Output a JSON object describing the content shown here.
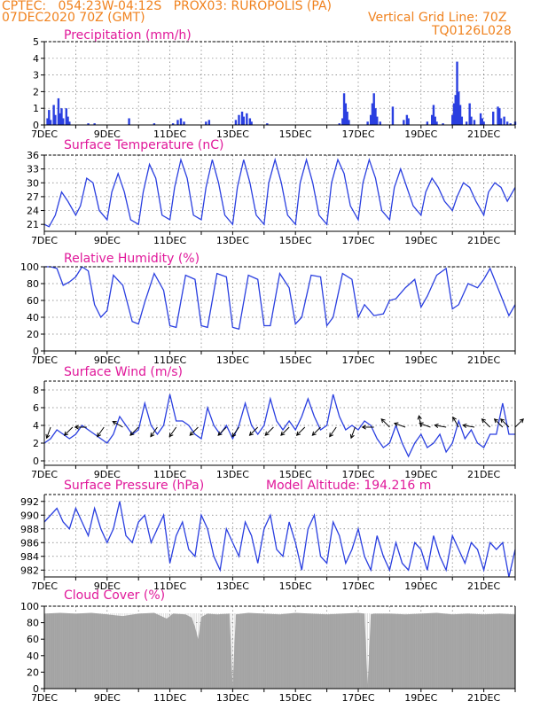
{
  "header": {
    "line1": "CPTEC:   054:23W-04:12S   PROX03: RUROPOLIS (PA)",
    "line2": "07DEC2020 70Z (GMT)",
    "grid_line": "Vertical Grid Line: 70Z",
    "code": "TQ0126L028"
  },
  "colors": {
    "header": "#f0821e",
    "titles": "#e0189a",
    "series": "#2a3fe0",
    "cloud": "#a8a8a8"
  },
  "x_axis": {
    "start": "07DEC",
    "end": "22DEC",
    "days": 15,
    "ticks": [
      {
        "day": 0,
        "label": "7DEC"
      },
      {
        "day": 2,
        "label": "9DEC"
      },
      {
        "day": 4,
        "label": "11DEC"
      },
      {
        "day": 6,
        "label": "13DEC"
      },
      {
        "day": 8,
        "label": "15DEC"
      },
      {
        "day": 10,
        "label": "17DEC"
      },
      {
        "day": 12,
        "label": "19DEC"
      },
      {
        "day": 14,
        "label": "21DEC"
      }
    ]
  },
  "chart_data": [
    {
      "id": "precip",
      "type": "bar",
      "title": "Precipitation (mm/h)",
      "ylim": [
        0,
        5
      ],
      "yticks": [
        0,
        1,
        2,
        3,
        4,
        5
      ],
      "grid": true,
      "bars": [
        [
          0.1,
          0.4
        ],
        [
          0.15,
          0.9
        ],
        [
          0.2,
          0.3
        ],
        [
          0.3,
          1.2
        ],
        [
          0.35,
          0.6
        ],
        [
          0.45,
          1.6
        ],
        [
          0.5,
          0.7
        ],
        [
          0.55,
          1.0
        ],
        [
          0.6,
          0.4
        ],
        [
          0.7,
          1.0
        ],
        [
          0.75,
          0.5
        ],
        [
          0.8,
          0.2
        ],
        [
          1.4,
          0.1
        ],
        [
          1.6,
          0.1
        ],
        [
          2.7,
          0.4
        ],
        [
          3.5,
          0.1
        ],
        [
          4.1,
          0.1
        ],
        [
          4.25,
          0.3
        ],
        [
          4.35,
          0.4
        ],
        [
          4.45,
          0.2
        ],
        [
          5.15,
          0.2
        ],
        [
          5.25,
          0.3
        ],
        [
          6.1,
          0.3
        ],
        [
          6.2,
          0.6
        ],
        [
          6.3,
          0.8
        ],
        [
          6.35,
          0.5
        ],
        [
          6.45,
          0.7
        ],
        [
          6.55,
          0.4
        ],
        [
          6.6,
          0.2
        ],
        [
          7.1,
          0.1
        ],
        [
          9.4,
          0.1
        ],
        [
          9.5,
          0.4
        ],
        [
          9.55,
          1.9
        ],
        [
          9.6,
          1.3
        ],
        [
          9.65,
          0.8
        ],
        [
          9.7,
          0.3
        ],
        [
          10.3,
          0.2
        ],
        [
          10.4,
          0.6
        ],
        [
          10.45,
          1.3
        ],
        [
          10.5,
          1.9
        ],
        [
          10.55,
          1.0
        ],
        [
          10.6,
          0.5
        ],
        [
          10.7,
          0.2
        ],
        [
          11.1,
          1.1
        ],
        [
          11.45,
          0.3
        ],
        [
          11.55,
          0.6
        ],
        [
          11.6,
          0.4
        ],
        [
          12.2,
          0.2
        ],
        [
          12.35,
          0.6
        ],
        [
          12.4,
          1.2
        ],
        [
          12.45,
          0.5
        ],
        [
          12.5,
          0.2
        ],
        [
          12.7,
          0.1
        ],
        [
          13.0,
          0.6
        ],
        [
          13.05,
          1.3
        ],
        [
          13.1,
          1.8
        ],
        [
          13.15,
          3.8
        ],
        [
          13.2,
          2.0
        ],
        [
          13.25,
          1.2
        ],
        [
          13.3,
          0.5
        ],
        [
          13.45,
          0.2
        ],
        [
          13.55,
          1.3
        ],
        [
          13.6,
          0.5
        ],
        [
          13.7,
          0.3
        ],
        [
          13.9,
          0.7
        ],
        [
          13.95,
          0.4
        ],
        [
          14.0,
          0.2
        ],
        [
          14.3,
          0.8
        ],
        [
          14.45,
          1.1
        ],
        [
          14.5,
          1.0
        ],
        [
          14.55,
          0.4
        ],
        [
          14.65,
          0.5
        ],
        [
          14.75,
          0.2
        ],
        [
          14.85,
          0.1
        ],
        [
          15.0,
          0.2
        ]
      ]
    },
    {
      "id": "temp",
      "type": "line",
      "title": "Surface Temperature (nC)",
      "ylim": [
        19.5,
        36
      ],
      "yticks": [
        21,
        24,
        27,
        30,
        33,
        36
      ],
      "grid": true,
      "x": [
        0,
        0.15,
        0.35,
        0.55,
        0.75,
        1.0,
        1.15,
        1.35,
        1.55,
        1.75,
        2.0,
        2.15,
        2.35,
        2.55,
        2.75,
        3.0,
        3.15,
        3.35,
        3.55,
        3.75,
        4.0,
        4.15,
        4.35,
        4.55,
        4.75,
        5.0,
        5.15,
        5.35,
        5.55,
        5.75,
        6.0,
        6.15,
        6.35,
        6.55,
        6.75,
        7.0,
        7.15,
        7.35,
        7.55,
        7.75,
        8.0,
        8.15,
        8.35,
        8.55,
        8.75,
        9.0,
        9.15,
        9.35,
        9.55,
        9.75,
        10.0,
        10.15,
        10.35,
        10.55,
        10.75,
        11.0,
        11.15,
        11.35,
        11.55,
        11.75,
        12.0,
        12.15,
        12.35,
        12.55,
        12.75,
        13.0,
        13.15,
        13.35,
        13.55,
        13.75,
        14.0,
        14.15,
        14.35,
        14.55,
        14.75,
        15.0
      ],
      "values": [
        21,
        20.5,
        23,
        28,
        26,
        23,
        25,
        31,
        30,
        24,
        22,
        28,
        32,
        28,
        22,
        21,
        28,
        34,
        31,
        23,
        22,
        29,
        35,
        31,
        23,
        22,
        29,
        35,
        30,
        23,
        21,
        29,
        35,
        30,
        23,
        21,
        30,
        35,
        30,
        23,
        21,
        30,
        35,
        30,
        23,
        21,
        30,
        35,
        32,
        25,
        22,
        30,
        35,
        31,
        24,
        22,
        29,
        33,
        29,
        25,
        23,
        28,
        31,
        29,
        26,
        24,
        27,
        30,
        29,
        26,
        23,
        28,
        30,
        29,
        26,
        29
      ]
    },
    {
      "id": "rh",
      "type": "line",
      "title": "Relative Humidity (%)",
      "ylim": [
        0,
        100
      ],
      "yticks": [
        0,
        20,
        40,
        60,
        80,
        100
      ],
      "grid": true,
      "x": [
        0,
        0.2,
        0.4,
        0.6,
        0.8,
        1.0,
        1.2,
        1.4,
        1.6,
        1.8,
        2.0,
        2.2,
        2.5,
        2.8,
        3.0,
        3.2,
        3.5,
        3.8,
        4.0,
        4.2,
        4.5,
        4.8,
        5.0,
        5.2,
        5.5,
        5.8,
        6.0,
        6.2,
        6.5,
        6.8,
        7.0,
        7.2,
        7.5,
        7.8,
        8.0,
        8.2,
        8.5,
        8.8,
        9.0,
        9.2,
        9.5,
        9.8,
        10.0,
        10.2,
        10.5,
        10.8,
        11.0,
        11.2,
        11.5,
        11.8,
        12.0,
        12.2,
        12.5,
        12.8,
        13.0,
        13.2,
        13.5,
        13.8,
        14.0,
        14.2,
        14.5,
        14.8,
        15.0
      ],
      "values": [
        100,
        100,
        98,
        78,
        82,
        88,
        100,
        95,
        55,
        40,
        48,
        90,
        78,
        35,
        32,
        58,
        92,
        72,
        30,
        28,
        90,
        85,
        30,
        28,
        92,
        88,
        28,
        26,
        90,
        85,
        30,
        30,
        92,
        75,
        32,
        40,
        90,
        88,
        30,
        40,
        92,
        85,
        40,
        55,
        42,
        44,
        60,
        62,
        75,
        85,
        52,
        65,
        90,
        98,
        50,
        55,
        80,
        75,
        85,
        98,
        70,
        42,
        55
      ]
    },
    {
      "id": "wind",
      "type": "line",
      "title": "Surface Wind (m/s)",
      "ylim": [
        -0.5,
        9
      ],
      "yticks": [
        0,
        2,
        4,
        6,
        8
      ],
      "grid": true,
      "x": [
        0,
        0.2,
        0.4,
        0.6,
        0.8,
        1.0,
        1.2,
        1.4,
        1.6,
        1.8,
        2.0,
        2.2,
        2.4,
        2.6,
        2.8,
        3.0,
        3.2,
        3.4,
        3.6,
        3.8,
        4.0,
        4.2,
        4.4,
        4.6,
        4.8,
        5.0,
        5.2,
        5.4,
        5.6,
        5.8,
        6.0,
        6.2,
        6.4,
        6.6,
        6.8,
        7.0,
        7.2,
        7.4,
        7.6,
        7.8,
        8.0,
        8.2,
        8.4,
        8.6,
        8.8,
        9.0,
        9.2,
        9.4,
        9.6,
        9.8,
        10.0,
        10.2,
        10.4,
        10.6,
        10.8,
        11.0,
        11.2,
        11.4,
        11.6,
        11.8,
        12.0,
        12.2,
        12.4,
        12.6,
        12.8,
        13.0,
        13.2,
        13.4,
        13.6,
        13.8,
        14.0,
        14.2,
        14.4,
        14.6,
        14.8,
        15.0
      ],
      "values": [
        2,
        2.5,
        3.5,
        3,
        2.5,
        3,
        4,
        3.5,
        3,
        2.5,
        2,
        3,
        5,
        4,
        3,
        3.5,
        6.5,
        4,
        3,
        4,
        7.5,
        4.5,
        4.5,
        4,
        3,
        2.5,
        6,
        4,
        3,
        4,
        2.5,
        4,
        6.5,
        4,
        3,
        4,
        7,
        4.5,
        3.5,
        4.5,
        3.5,
        5,
        7,
        5,
        3.5,
        4,
        7.5,
        5,
        3.5,
        4,
        3.5,
        4.5,
        4,
        2.5,
        1.5,
        2,
        4,
        2,
        0.5,
        2,
        3,
        1.5,
        2,
        3,
        1,
        2,
        4.5,
        2.5,
        3.5,
        2,
        1.5,
        3,
        3,
        6.5,
        3,
        3
      ],
      "arrows": [
        [
          0.2,
          250
        ],
        [
          0.9,
          225
        ],
        [
          1.35,
          180
        ],
        [
          1.9,
          235
        ],
        [
          2.5,
          150
        ],
        [
          3.0,
          225
        ],
        [
          3.6,
          235
        ],
        [
          4.2,
          235
        ],
        [
          4.9,
          225
        ],
        [
          5.8,
          225
        ],
        [
          6.2,
          235
        ],
        [
          6.8,
          225
        ],
        [
          7.3,
          225
        ],
        [
          7.8,
          225
        ],
        [
          8.3,
          225
        ],
        [
          8.8,
          225
        ],
        [
          9.3,
          235
        ],
        [
          9.9,
          250
        ],
        [
          10.5,
          180
        ],
        [
          11.0,
          135
        ],
        [
          11.5,
          160
        ],
        [
          12.0,
          100
        ],
        [
          12.3,
          160
        ],
        [
          12.8,
          170
        ],
        [
          13.2,
          120
        ],
        [
          13.7,
          170
        ],
        [
          14.2,
          135
        ],
        [
          14.6,
          135
        ],
        [
          14.8,
          135
        ],
        [
          15.0,
          45
        ]
      ]
    },
    {
      "id": "pres",
      "type": "line",
      "title": "Surface Pressure (hPa)",
      "annotation": "Model Altitude: 194.216 m",
      "ylim": [
        981,
        993
      ],
      "yticks": [
        982,
        984,
        986,
        988,
        990,
        992
      ],
      "grid": true,
      "x": [
        0,
        0.2,
        0.4,
        0.6,
        0.8,
        1.0,
        1.2,
        1.4,
        1.6,
        1.8,
        2.0,
        2.2,
        2.4,
        2.6,
        2.8,
        3.0,
        3.2,
        3.4,
        3.6,
        3.8,
        4.0,
        4.2,
        4.4,
        4.6,
        4.8,
        5.0,
        5.2,
        5.4,
        5.6,
        5.8,
        6.0,
        6.2,
        6.4,
        6.6,
        6.8,
        7.0,
        7.2,
        7.4,
        7.6,
        7.8,
        8.0,
        8.2,
        8.4,
        8.6,
        8.8,
        9.0,
        9.2,
        9.4,
        9.6,
        9.8,
        10.0,
        10.2,
        10.4,
        10.6,
        10.8,
        11.0,
        11.2,
        11.4,
        11.6,
        11.8,
        12.0,
        12.2,
        12.4,
        12.6,
        12.8,
        13.0,
        13.2,
        13.4,
        13.6,
        13.8,
        14.0,
        14.2,
        14.4,
        14.6,
        14.8,
        15.0
      ],
      "values": [
        989,
        990,
        991,
        989,
        988,
        991,
        989,
        987,
        991,
        988,
        986,
        988,
        992,
        987,
        986,
        989,
        990,
        986,
        988,
        990,
        983,
        987,
        989,
        985,
        984,
        990,
        988,
        984,
        982,
        988,
        986,
        984,
        989,
        987,
        983,
        988,
        990,
        985,
        984,
        989,
        986,
        982,
        988,
        990,
        984,
        983,
        989,
        987,
        983,
        985,
        988,
        984,
        982,
        987,
        984,
        982,
        986,
        983,
        982,
        986,
        985,
        982,
        987,
        984,
        982,
        987,
        985,
        983,
        986,
        985,
        982,
        986,
        985,
        986,
        981,
        985
      ]
    },
    {
      "id": "cloud",
      "type": "area",
      "title": "Cloud Cover (%)",
      "ylim": [
        0,
        100
      ],
      "yticks": [
        0,
        20,
        40,
        60,
        80,
        100
      ],
      "grid": true,
      "x": [
        0,
        0.5,
        1.0,
        1.5,
        2.0,
        2.5,
        3.0,
        3.5,
        3.9,
        4.1,
        4.5,
        4.7,
        4.8,
        4.9,
        5.0,
        5.2,
        5.5,
        5.9,
        6.0,
        6.1,
        6.5,
        7.0,
        7.5,
        8.0,
        8.5,
        9.0,
        9.5,
        10.0,
        10.2,
        10.3,
        10.4,
        10.5,
        11.0,
        11.5,
        12.0,
        12.5,
        13.0,
        13.5,
        14.0,
        14.5,
        15.0
      ],
      "values": [
        91,
        92,
        91,
        92,
        90,
        88,
        91,
        92,
        85,
        91,
        90,
        86,
        75,
        60,
        87,
        91,
        90,
        91,
        3,
        90,
        92,
        91,
        90,
        92,
        91,
        90,
        91,
        92,
        91,
        5,
        90,
        91,
        91,
        90,
        91,
        92,
        90,
        91,
        90,
        91,
        90
      ]
    }
  ]
}
